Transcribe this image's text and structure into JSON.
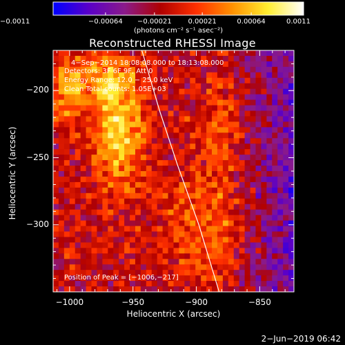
{
  "chart_data": {
    "type": "heatmap",
    "title": "Reconstructed RHESSI Image",
    "xlabel": "Heliocentric X (arcsec)",
    "ylabel": "Heliocentric Y (arcsec)",
    "xlim": [
      -1013,
      -823
    ],
    "ylim": [
      -350,
      -170
    ],
    "xticks": [
      -1000,
      -950,
      -900,
      -850
    ],
    "xtick_labels": [
      "−1000",
      "−950",
      "−900",
      "−850"
    ],
    "yticks": [
      -300,
      -250,
      -200
    ],
    "ytick_labels": [
      "−300",
      "−250",
      "−200"
    ],
    "colorbar": {
      "min": -0.0011,
      "max": 0.0011,
      "ticks": [
        -0.0011,
        -0.00064,
        -0.00021,
        0.00021,
        0.00064,
        0.0011
      ],
      "tick_labels": [
        "−0.0011",
        "−0.00064",
        "−0.00021",
        "0.00021",
        "0.00064",
        "0.0011"
      ],
      "units": "(photons cm⁻² s⁻¹ asec⁻²)",
      "colormap": [
        "#0000ff",
        "#5a00c8",
        "#8a1a8a",
        "#b00000",
        "#ff3000",
        "#ff9000",
        "#ffee30",
        "#ffffff"
      ]
    },
    "annotations": [
      "4−Sep−2014 18:08:08.000 to 18:13:08.000",
      "Detectors: 3F 6F 9F, Att 0",
      "Energy Range: 12.0 − 25.0 keV",
      "Clean    Total counts: 1.05E+03"
    ],
    "peak_label": "Position of Peak = [−1006,−217]",
    "peak": [
      -1006,
      -217
    ],
    "limb_curve": [
      [
        -943,
        -170
      ],
      [
        -929,
        -215
      ],
      [
        -915,
        -255
      ],
      [
        -898,
        -300
      ],
      [
        -882,
        -350
      ]
    ],
    "grid": false
  },
  "timestamp": "2−Jun−2019 06:42"
}
